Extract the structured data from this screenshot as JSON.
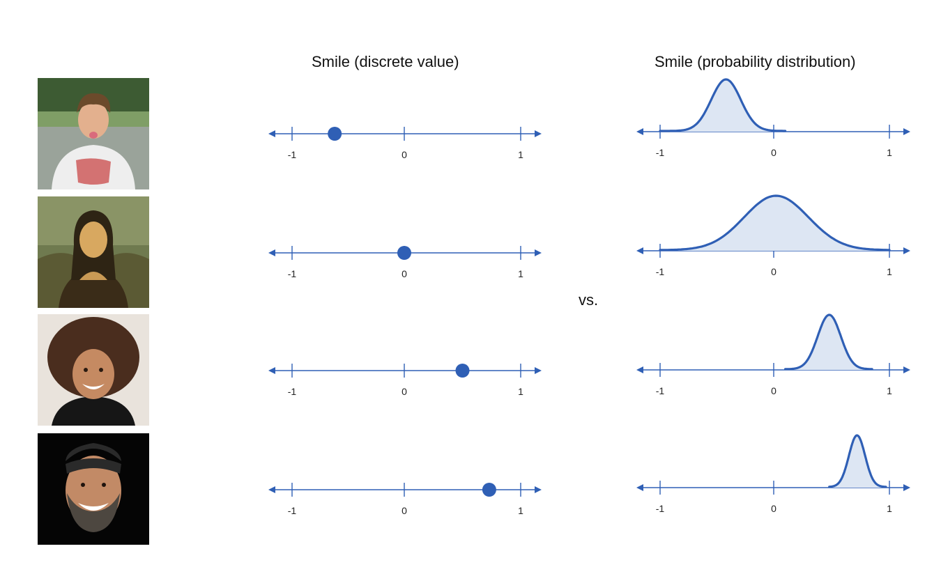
{
  "titles": {
    "left": "Smile (discrete value)",
    "right": "Smile (probability distribution)"
  },
  "vs_label": "vs.",
  "tick_labels": [
    "-1",
    "0",
    "1"
  ],
  "colors": {
    "axis": "#2f5fb5",
    "point": "#2f5fb5",
    "curve": "#2f5fb5",
    "curve_fill": "#dde6f3"
  },
  "chart_data": {
    "type": "diagram",
    "axis_range": [
      -1,
      1
    ],
    "rows": [
      {
        "photo": "boy-frowning-photo",
        "discrete_value": -0.62,
        "distribution": {
          "mean": -0.42,
          "sd": 0.13,
          "x_range": [
            -1,
            0.1
          ]
        }
      },
      {
        "photo": "mona-lisa-photo",
        "discrete_value": 0.0,
        "distribution": {
          "mean": 0.02,
          "sd": 0.28,
          "x_range": [
            -1,
            1
          ]
        }
      },
      {
        "photo": "girl-smiling-photo",
        "discrete_value": 0.5,
        "distribution": {
          "mean": 0.48,
          "sd": 0.1,
          "x_range": [
            0.1,
            0.85
          ]
        }
      },
      {
        "photo": "man-laughing-photo",
        "discrete_value": 0.73,
        "distribution": {
          "mean": 0.72,
          "sd": 0.07,
          "x_range": [
            0.48,
            0.97
          ]
        }
      }
    ]
  }
}
